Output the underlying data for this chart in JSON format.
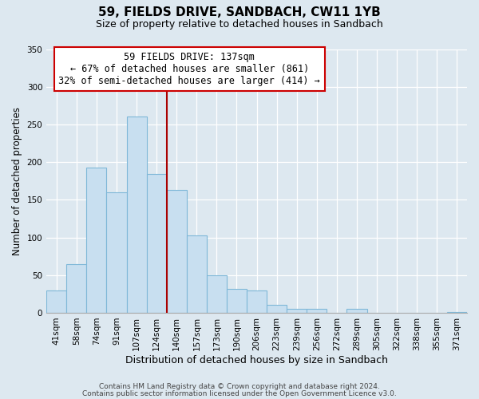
{
  "title": "59, FIELDS DRIVE, SANDBACH, CW11 1YB",
  "subtitle": "Size of property relative to detached houses in Sandbach",
  "xlabel": "Distribution of detached houses by size in Sandbach",
  "ylabel": "Number of detached properties",
  "bar_labels": [
    "41sqm",
    "58sqm",
    "74sqm",
    "91sqm",
    "107sqm",
    "124sqm",
    "140sqm",
    "157sqm",
    "173sqm",
    "190sqm",
    "206sqm",
    "223sqm",
    "239sqm",
    "256sqm",
    "272sqm",
    "289sqm",
    "305sqm",
    "322sqm",
    "338sqm",
    "355sqm",
    "371sqm"
  ],
  "bar_values": [
    30,
    65,
    193,
    160,
    261,
    184,
    163,
    103,
    50,
    32,
    30,
    11,
    5,
    5,
    0,
    5,
    0,
    0,
    0,
    0,
    1
  ],
  "bar_color": "#c8dff0",
  "bar_edge_color": "#7fb8d8",
  "vline_x_index": 6,
  "vline_color": "#aa0000",
  "annotation_title": "59 FIELDS DRIVE: 137sqm",
  "annotation_line1": "← 67% of detached houses are smaller (861)",
  "annotation_line2": "32% of semi-detached houses are larger (414) →",
  "annotation_box_facecolor": "#ffffff",
  "annotation_box_edgecolor": "#cc0000",
  "ylim": [
    0,
    350
  ],
  "yticks": [
    0,
    50,
    100,
    150,
    200,
    250,
    300,
    350
  ],
  "footer1": "Contains HM Land Registry data © Crown copyright and database right 2024.",
  "footer2": "Contains public sector information licensed under the Open Government Licence v3.0.",
  "bg_color": "#dde8f0",
  "plot_bg_color": "#dde8f0",
  "grid_color": "#ffffff",
  "title_fontsize": 11,
  "subtitle_fontsize": 9,
  "annotation_fontsize": 8.5,
  "tick_fontsize": 7.5,
  "ylabel_fontsize": 8.5,
  "xlabel_fontsize": 9,
  "footer_fontsize": 6.5
}
